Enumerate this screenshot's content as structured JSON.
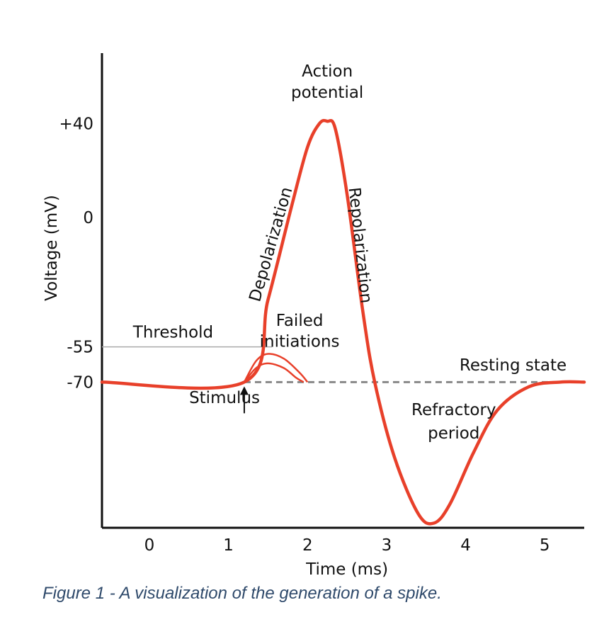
{
  "caption": "Figure 1 - A visualization of the generation of a spike.",
  "colors": {
    "curve": "#e8402a",
    "axis": "#111111",
    "threshold_line": "#aaaaaa",
    "baseline_dash": "#888888",
    "caption": "#2f4a6b"
  },
  "chart_data": {
    "type": "line",
    "title": "",
    "xlabel": "Time (ms)",
    "ylabel": "Voltage (mV)",
    "x_ticks": [
      "0",
      "1",
      "2",
      "3",
      "4",
      "5"
    ],
    "y_ticks": [
      "+40",
      "0",
      "-55",
      "-70"
    ],
    "y_tick_values": [
      40,
      0,
      -55,
      -70
    ],
    "xlim": [
      -0.6,
      5.5
    ],
    "ylim": [
      -132,
      70
    ],
    "grid": false,
    "threshold": -55,
    "resting": -70,
    "series": [
      {
        "x": [
          -0.6,
          1.2,
          1.5,
          1.8,
          2.0,
          2.15,
          2.25,
          2.35,
          2.5,
          2.7,
          2.85,
          3.1,
          3.4,
          3.6,
          3.8,
          4.1,
          4.4,
          4.8,
          5.2,
          5.5
        ],
        "y": [
          -70,
          -70,
          -35,
          5,
          30,
          40,
          41,
          38,
          10,
          -40,
          -70,
          -102,
          -126,
          -130,
          -122,
          -100,
          -82,
          -72,
          -70,
          -70
        ]
      }
    ],
    "failed_initiations": [
      {
        "x": [
          1.2,
          1.35,
          1.5,
          1.7,
          1.9,
          2.0
        ],
        "y": [
          -70,
          -61,
          -58,
          -60,
          -66,
          -70
        ]
      },
      {
        "x": [
          1.2,
          1.35,
          1.5,
          1.7,
          1.85,
          1.95
        ],
        "y": [
          -70,
          -64,
          -62,
          -64,
          -68,
          -70
        ]
      }
    ],
    "threshold_line_x": [
      -0.6,
      1.55
    ],
    "resting_dash_x": [
      1.2,
      5.2
    ],
    "stimulus_x": 1.2,
    "annotations": [
      {
        "text": "Action",
        "x": 2.25,
        "y": 60
      },
      {
        "text": "potential",
        "x": 2.25,
        "y": 51
      },
      {
        "text": "Depolarization",
        "x": 1.6,
        "y": -12
      },
      {
        "text": "Repolarization",
        "x": 2.6,
        "y": -12
      },
      {
        "text": "Failed",
        "x": 1.9,
        "y": -46
      },
      {
        "text": "initiations",
        "x": 1.9,
        "y": -55
      },
      {
        "text": "Threshold",
        "x": 0.3,
        "y": -51
      },
      {
        "text": "Resting state",
        "x": 4.6,
        "y": -65
      },
      {
        "text": "Stimulus",
        "x": 0.95,
        "y": -79
      },
      {
        "text": "Refractory",
        "x": 3.85,
        "y": -84
      },
      {
        "text": "period",
        "x": 3.85,
        "y": -94
      }
    ]
  }
}
